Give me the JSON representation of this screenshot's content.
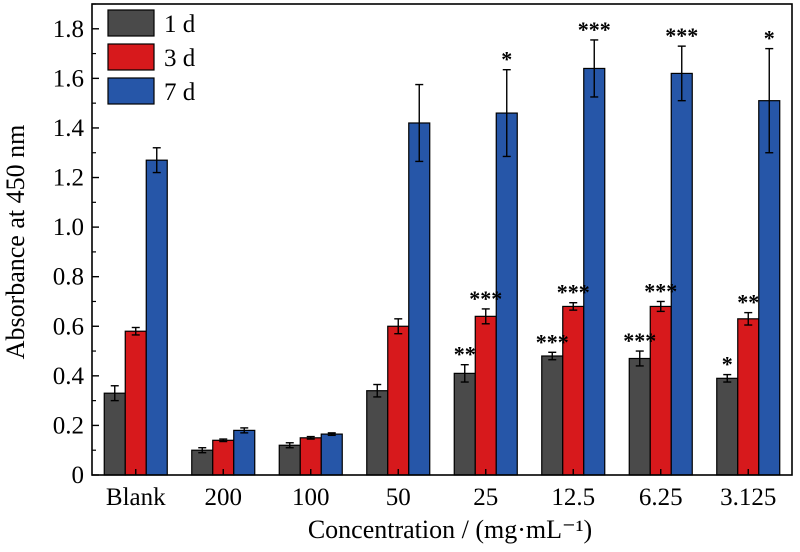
{
  "chart_data": {
    "type": "bar",
    "xlabel": "Concentration / (mg·mL⁻¹)",
    "ylabel": "Absorbance at 450 nm",
    "ylim": [
      0,
      1.9
    ],
    "yticks": [
      "0",
      "0.2",
      "0.4",
      "0.6",
      "0.8",
      "1.0",
      "1.2",
      "1.4",
      "1.6",
      "1.8"
    ],
    "categories": [
      "Blank",
      "200",
      "100",
      "50",
      "25",
      "12.5",
      "6.25",
      "3.125"
    ],
    "legend_position": "top-left",
    "grid": false,
    "series": [
      {
        "name": "1 d",
        "color": "#4a4a4a",
        "values": [
          0.33,
          0.1,
          0.12,
          0.34,
          0.41,
          0.48,
          0.47,
          0.39
        ],
        "errors": [
          0.03,
          0.01,
          0.01,
          0.025,
          0.035,
          0.015,
          0.03,
          0.015
        ],
        "stars": [
          "",
          "",
          "",
          "",
          "**",
          "***",
          "***",
          "*"
        ]
      },
      {
        "name": "3 d",
        "color": "#d7191c",
        "values": [
          0.58,
          0.14,
          0.15,
          0.6,
          0.64,
          0.68,
          0.68,
          0.63
        ],
        "errors": [
          0.015,
          0.005,
          0.005,
          0.03,
          0.03,
          0.015,
          0.02,
          0.025
        ],
        "stars": [
          "",
          "",
          "",
          "",
          "***",
          "***",
          "***",
          "**"
        ]
      },
      {
        "name": "7 d",
        "color": "#2656a8",
        "values": [
          1.27,
          0.18,
          0.165,
          1.42,
          1.46,
          1.64,
          1.62,
          1.51
        ],
        "errors": [
          0.05,
          0.01,
          0.005,
          0.155,
          0.175,
          0.115,
          0.11,
          0.21
        ],
        "stars": [
          "",
          "",
          "",
          "",
          "*",
          "***",
          "***",
          "*"
        ]
      }
    ]
  }
}
